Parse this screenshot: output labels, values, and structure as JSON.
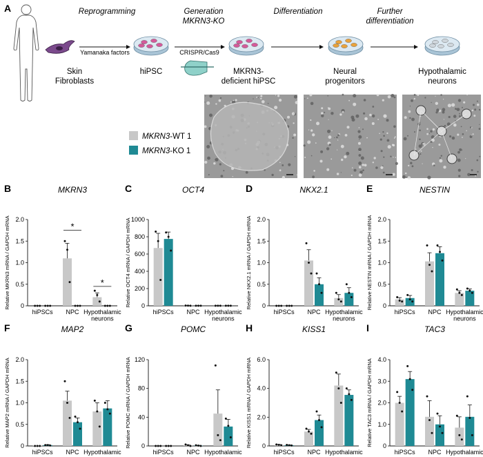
{
  "panel_a": {
    "label": "A",
    "steps": [
      "Reprogramming",
      "Generation MKRN3-KO",
      "Differentiation",
      "Further differentiation"
    ],
    "steps_lines": [
      [
        "Reprogramming"
      ],
      [
        "Generation",
        "MKRN3-KO"
      ],
      [
        "Differentiation"
      ],
      [
        "Further",
        "differentiation"
      ]
    ],
    "yamanaka": "Yamanaka factors",
    "crispr": "CRISPR/Cas9",
    "stages": [
      [
        "Skin",
        "Fibroblasts"
      ],
      [
        "hiPSC"
      ],
      [
        "MKRN3-",
        "deficient hiPSC"
      ],
      [
        "Neural",
        "progenitors"
      ],
      [
        "Hypothalamic",
        "neurons"
      ]
    ],
    "legend": [
      {
        "gene": "MKRN3",
        "suffix": "-WT 1",
        "color": "#c8c8c8"
      },
      {
        "gene": "MKRN3",
        "suffix": "-KO 1",
        "color": "#1f8a94"
      }
    ]
  },
  "colors": {
    "wt": "#c8c8c8",
    "ko": "#1f8a94"
  },
  "chart_data": [
    {
      "type": "bar",
      "panel": "B",
      "title": "MKRN3",
      "ylabel": "Relative MKRN3 mRNA / GAPDH mRNA",
      "categories": [
        "hiPSCs",
        "NPC",
        "Hypothalamic neurons"
      ],
      "ylim": [
        0,
        2.0
      ],
      "yticks": [
        "0",
        "0.5",
        "1.0",
        "1.5",
        "2.0"
      ],
      "ytick_values": [
        0,
        0.5,
        1.0,
        1.5,
        2.0
      ],
      "series": [
        {
          "name": "MKRN3-WT 1",
          "values": [
            0.0,
            1.1,
            0.2
          ],
          "errors": [
            0.0,
            0.35,
            0.1
          ]
        },
        {
          "name": "MKRN3-KO 1",
          "values": [
            0.0,
            0.0,
            0.0
          ],
          "errors": [
            0.0,
            0.0,
            0.0
          ]
        }
      ],
      "points": [
        [
          [
            0,
            0,
            0
          ],
          [
            0,
            0,
            0
          ]
        ],
        [
          [
            1.5,
            1.3,
            0.55
          ],
          [
            0,
            0,
            0
          ]
        ],
        [
          [
            0.35,
            0.25,
            0.1
          ],
          [
            0,
            0,
            0
          ]
        ]
      ],
      "significance": [
        {
          "category": 1,
          "label": "*",
          "y": 1.75
        },
        {
          "category": 2,
          "label": "*",
          "y": 0.45
        }
      ]
    },
    {
      "type": "bar",
      "panel": "C",
      "title": "OCT4",
      "ylabel": "Relative OCT4 mRNA / GAPDH mRNA",
      "categories": [
        "hiPSCs",
        "NPC",
        "Hypothalamic neurons"
      ],
      "ylim": [
        0,
        1000
      ],
      "yticks": [
        "0",
        "200",
        "400",
        "600",
        "800",
        "1000"
      ],
      "ytick_values": [
        0,
        200,
        400,
        600,
        800,
        1000
      ],
      "series": [
        {
          "name": "MKRN3-WT 1",
          "values": [
            670,
            2,
            1
          ],
          "errors": [
            170,
            1,
            1
          ]
        },
        {
          "name": "MKRN3-KO 1",
          "values": [
            775,
            1,
            1
          ],
          "errors": [
            80,
            1,
            1
          ]
        }
      ],
      "points": [
        [
          [
            860,
            750,
            300
          ],
          [
            850,
            800,
            640
          ]
        ],
        [
          [
            3,
            2,
            1
          ],
          [
            1,
            1,
            1
          ]
        ],
        [
          [
            1,
            1,
            1
          ],
          [
            1,
            1,
            1
          ]
        ]
      ],
      "significance": []
    },
    {
      "type": "bar",
      "panel": "D",
      "title": "NKX2.1",
      "ylabel": "Relative NKX2.1 mRNA / GAPDH mRNA",
      "categories": [
        "hiPSCs",
        "NPC",
        "Hypothalamic neurons"
      ],
      "ylim": [
        0,
        2.0
      ],
      "yticks": [
        "0",
        "0.5",
        "1.0",
        "1.5",
        "2.0"
      ],
      "ytick_values": [
        0,
        0.5,
        1.0,
        1.5,
        2.0
      ],
      "series": [
        {
          "name": "MKRN3-WT 1",
          "values": [
            0.0,
            1.05,
            0.18
          ],
          "errors": [
            0.0,
            0.25,
            0.08
          ]
        },
        {
          "name": "MKRN3-KO 1",
          "values": [
            0.0,
            0.5,
            0.3
          ],
          "errors": [
            0.0,
            0.15,
            0.12
          ]
        }
      ],
      "points": [
        [
          [
            0,
            0,
            0
          ],
          [
            0,
            0,
            0
          ]
        ],
        [
          [
            1.45,
            1.0,
            0.75
          ],
          [
            0.75,
            0.5,
            0.3
          ]
        ],
        [
          [
            0.3,
            0.15,
            0.1
          ],
          [
            0.5,
            0.3,
            0.2
          ]
        ]
      ],
      "significance": []
    },
    {
      "type": "bar",
      "panel": "E",
      "title": "NESTIN",
      "ylabel": "Relative NESTIN mRNA / GAPDH mRNA",
      "categories": [
        "hiPSCs",
        "NPC",
        "Hypothalamic neurons"
      ],
      "ylim": [
        0,
        2.0
      ],
      "yticks": [
        "0",
        "0.5",
        "1.0",
        "1.5",
        "2.0"
      ],
      "ytick_values": [
        0,
        0.5,
        1.0,
        1.5,
        2.0
      ],
      "series": [
        {
          "name": "MKRN3-WT 1",
          "values": [
            0.15,
            1.03,
            0.3
          ],
          "errors": [
            0.04,
            0.2,
            0.05
          ]
        },
        {
          "name": "MKRN3-KO 1",
          "values": [
            0.18,
            1.22,
            0.35
          ],
          "errors": [
            0.06,
            0.15,
            0.04
          ]
        }
      ],
      "points": [
        [
          [
            0.2,
            0.12,
            0.1
          ],
          [
            0.25,
            0.15,
            0.1
          ]
        ],
        [
          [
            1.4,
            0.95,
            0.8
          ],
          [
            1.4,
            1.25,
            1.05
          ]
        ],
        [
          [
            0.38,
            0.3,
            0.25
          ],
          [
            0.4,
            0.35,
            0.3
          ]
        ]
      ],
      "significance": []
    },
    {
      "type": "bar",
      "panel": "F",
      "title": "MAP2",
      "ylabel": "Relative MAP2 mRNA / GAPDH mRNA",
      "categories": [
        "hiPSCs",
        "NPC",
        "Hypothalamic neurons"
      ],
      "ylim": [
        0,
        2.0
      ],
      "yticks": [
        "0",
        "0.5",
        "1.0",
        "1.5",
        "2.0"
      ],
      "ytick_values": [
        0,
        0.5,
        1.0,
        1.5,
        2.0
      ],
      "series": [
        {
          "name": "MKRN3-WT 1",
          "values": [
            0.01,
            1.05,
            0.8
          ],
          "errors": [
            0.0,
            0.22,
            0.2
          ]
        },
        {
          "name": "MKRN3-KO 1",
          "values": [
            0.02,
            0.55,
            0.87
          ],
          "errors": [
            0.01,
            0.1,
            0.18
          ]
        }
      ],
      "points": [
        [
          [
            0,
            0,
            0
          ],
          [
            0.02,
            0.02,
            0.01
          ]
        ],
        [
          [
            1.5,
            1.0,
            0.65
          ],
          [
            0.68,
            0.55,
            0.4
          ]
        ],
        [
          [
            1.05,
            0.8,
            0.45
          ],
          [
            1.0,
            0.85,
            0.75
          ]
        ]
      ],
      "significance": []
    },
    {
      "type": "bar",
      "panel": "G",
      "title": "POMC",
      "ylabel": "Relative POMC mRNA / GAPDH mRNA",
      "categories": [
        "hiPSCs",
        "NPC",
        "Hypothalamic neurons"
      ],
      "ylim": [
        0,
        120
      ],
      "yticks": [
        "0",
        "40",
        "80",
        "120"
      ],
      "ytick_values": [
        0,
        40,
        80,
        120
      ],
      "series": [
        {
          "name": "MKRN3-WT 1",
          "values": [
            0.0,
            1.0,
            45
          ],
          "errors": [
            0.0,
            0.5,
            33
          ]
        },
        {
          "name": "MKRN3-KO 1",
          "values": [
            0.0,
            0.5,
            27
          ],
          "errors": [
            0.0,
            0.3,
            10
          ]
        }
      ],
      "points": [
        [
          [
            0,
            0,
            0
          ],
          [
            0,
            0,
            0
          ]
        ],
        [
          [
            2,
            1,
            0
          ],
          [
            1,
            0.5,
            0
          ]
        ],
        [
          [
            112,
            15,
            8
          ],
          [
            38,
            28,
            12
          ]
        ]
      ],
      "significance": []
    },
    {
      "type": "bar",
      "panel": "H",
      "title": "KISS1",
      "ylabel": "Relative KISS1 mRNA / GAPDH mRNA",
      "categories": [
        "hiPSCs",
        "NPC",
        "Hypothalamic neurons"
      ],
      "ylim": [
        0,
        6.0
      ],
      "yticks": [
        "0",
        "2.0",
        "4.0",
        "6.0"
      ],
      "ytick_values": [
        0,
        2,
        4,
        6
      ],
      "series": [
        {
          "name": "MKRN3-WT 1",
          "values": [
            0.08,
            1.0,
            4.2
          ],
          "errors": [
            0.02,
            0.15,
            0.8
          ]
        },
        {
          "name": "MKRN3-KO 1",
          "values": [
            0.05,
            1.8,
            3.55
          ],
          "errors": [
            0.02,
            0.35,
            0.35
          ]
        }
      ],
      "points": [
        [
          [
            0.1,
            0.08,
            0.05
          ],
          [
            0.07,
            0.05,
            0.03
          ]
        ],
        [
          [
            1.2,
            1.0,
            0.85
          ],
          [
            2.4,
            1.8,
            1.3
          ]
        ],
        [
          [
            5.1,
            4.0,
            3.0
          ],
          [
            4.0,
            3.6,
            3.2
          ]
        ]
      ],
      "significance": []
    },
    {
      "type": "bar",
      "panel": "I",
      "title": "TAC3",
      "ylabel": "Relative TAC3 mRNA / GAPDH mRNA",
      "categories": [
        "hiPSCs",
        "NPC",
        "Hypothalamic neurons"
      ],
      "ylim": [
        0,
        4.0
      ],
      "yticks": [
        "0",
        "1.0",
        "2.0",
        "3.0",
        "4.0"
      ],
      "ytick_values": [
        0,
        1,
        2,
        3,
        4
      ],
      "series": [
        {
          "name": "MKRN3-WT 1",
          "values": [
            2.0,
            1.35,
            0.85
          ],
          "errors": [
            0.3,
            0.75,
            0.5
          ]
        },
        {
          "name": "MKRN3-KO 1",
          "values": [
            3.1,
            1.0,
            1.35
          ],
          "errors": [
            0.35,
            0.4,
            0.55
          ]
        }
      ],
      "points": [
        [
          [
            2.5,
            2.0,
            1.6
          ],
          [
            3.7,
            3.1,
            2.6
          ]
        ],
        [
          [
            2.3,
            1.2,
            0.6
          ],
          [
            1.5,
            0.9,
            0.6
          ]
        ],
        [
          [
            1.4,
            0.5,
            0.3
          ],
          [
            2.3,
            1.3,
            0.5
          ]
        ]
      ],
      "significance": []
    }
  ]
}
